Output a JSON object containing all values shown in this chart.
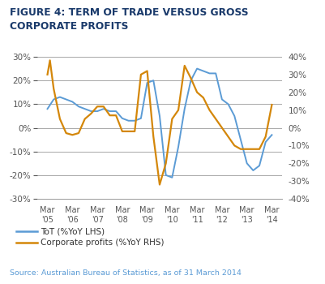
{
  "title_line1": "FIGURE 4: TERM OF TRADE VERSUS GROSS",
  "title_line2": "CORPORATE PROFITS",
  "source": "Source: Australian Bureau of Statistics, as of 31 March 2014",
  "x_labels": [
    "Mar\n'05",
    "Mar\n'06",
    "Mar\n'07",
    "Mar\n'08",
    "Mar\n'09",
    "Mar\n'10",
    "Mar\n'11",
    "Mar\n'12",
    "Mar\n'13",
    "Mar\n'14"
  ],
  "x_positions": [
    0,
    1,
    2,
    3,
    4,
    5,
    6,
    7,
    8,
    9
  ],
  "tot_color": "#5b9bd5",
  "corp_color": "#d4870a",
  "background_color": "#ffffff",
  "lhs_ylim": [
    -30,
    30
  ],
  "rhs_ylim": [
    -40,
    40
  ],
  "lhs_yticks": [
    -30,
    -20,
    -10,
    0,
    10,
    20,
    30
  ],
  "rhs_yticks": [
    -40,
    -30,
    -20,
    -10,
    0,
    10,
    20,
    30,
    40
  ],
  "legend_tot": "ToT (%YoY LHS)",
  "legend_corp": "Corporate profits (%YoY RHS)",
  "title_color": "#1a3a6b",
  "axis_label_color": "#555555",
  "source_color": "#5b9bd5",
  "grid_color": "#999999",
  "tot_x": [
    0,
    0.25,
    0.5,
    0.75,
    1.0,
    1.25,
    1.5,
    1.75,
    2.0,
    2.25,
    2.5,
    2.75,
    3.0,
    3.25,
    3.5,
    3.75,
    4.0,
    4.25,
    4.5,
    4.75,
    5.0,
    5.25,
    5.5,
    5.75,
    6.0,
    6.25,
    6.5,
    6.75,
    7.0,
    7.25,
    7.5,
    7.75,
    8.0,
    8.25,
    8.5,
    8.75,
    9.0
  ],
  "tot_y": [
    8,
    12,
    13,
    12,
    11,
    9,
    8,
    7,
    7,
    8,
    7,
    7,
    4,
    3,
    3,
    4,
    19,
    20,
    5,
    -20,
    -21,
    -8,
    8,
    20,
    25,
    24,
    23,
    23,
    12,
    10,
    5,
    -5,
    -15,
    -18,
    -16,
    -6,
    -3
  ],
  "corp_x": [
    0,
    0.1,
    0.25,
    0.5,
    0.75,
    1.0,
    1.25,
    1.5,
    1.75,
    2.0,
    2.25,
    2.5,
    2.75,
    3.0,
    3.25,
    3.5,
    3.75,
    4.0,
    4.25,
    4.5,
    4.75,
    5.0,
    5.25,
    5.5,
    5.75,
    6.0,
    6.25,
    6.5,
    6.75,
    7.0,
    7.25,
    7.5,
    7.75,
    8.0,
    8.25,
    8.5,
    8.75,
    9.0
  ],
  "corp_y": [
    30,
    38,
    22,
    5,
    -3,
    -4,
    -3,
    5,
    8,
    12,
    12,
    7,
    7,
    -2,
    -2,
    -2,
    30,
    32,
    -5,
    -32,
    -20,
    5,
    10,
    35,
    28,
    20,
    17,
    10,
    5,
    0,
    -5,
    -10,
    -12,
    -12,
    -12,
    -12,
    -5,
    13
  ]
}
